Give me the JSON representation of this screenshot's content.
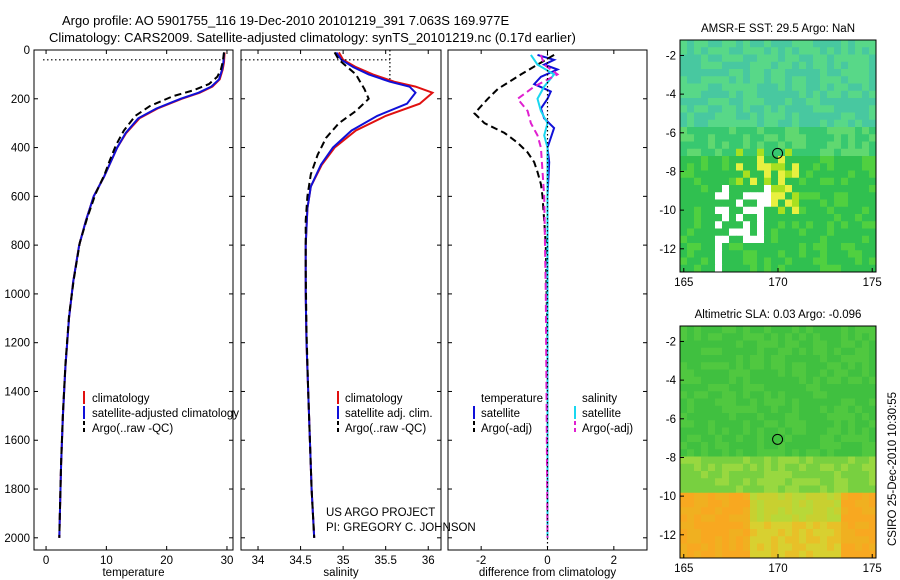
{
  "header": {
    "line1": "Argo profile: AO 5901755_116 19-Dec-2010 20101219_391 7.063S 169.977E",
    "line2": "Climatology: CARS2009. Satellite-adjusted climatology: synTS_20101219.nc (0.17d earlier)"
  },
  "credits": {
    "project": "US ARGO PROJECT",
    "pi": "PI: GREGORY C. JOHNSON",
    "stamp": "CSIRO 25-Dec-2010 10:30:55"
  },
  "colors": {
    "climatology": "#e01010",
    "satellite": "#1010d8",
    "argo": "#000000",
    "sal_satellite": "#19d7f0",
    "sal_argo": "#e020d0"
  },
  "chart_data": [
    {
      "type": "line",
      "id": "temperature",
      "xlabel": "temperature",
      "ylabel": "",
      "xlim": [
        -2,
        31
      ],
      "ylim": [
        2050,
        0
      ],
      "xticks": [
        "0",
        "10",
        "20",
        "30"
      ],
      "xtick_values": [
        0,
        10,
        20,
        30
      ],
      "yticks": [
        "0",
        "200",
        "400",
        "600",
        "800",
        "1000",
        "1200",
        "1400",
        "1600",
        "1800",
        "2000"
      ],
      "ytick_values": [
        0,
        200,
        400,
        600,
        800,
        1000,
        1200,
        1400,
        1600,
        1800,
        2000
      ],
      "legend": [
        "climatology",
        "satellite-adjusted climatology",
        "Argo(..raw -QC)"
      ],
      "series": [
        {
          "name": "climatology",
          "style": "solid",
          "color_key": "climatology",
          "x": [
            29.6,
            29.5,
            29.3,
            28.8,
            27.6,
            25.5,
            22.5,
            18.5,
            15.5,
            13.3,
            11.8,
            10.7,
            9.6,
            7.9,
            6.6,
            5.5,
            4.5,
            3.8,
            3.2,
            2.8,
            2.5,
            2.3,
            2.2
          ],
          "y": [
            10,
            50,
            80,
            120,
            150,
            175,
            200,
            240,
            280,
            340,
            400,
            460,
            520,
            600,
            700,
            800,
            950,
            1100,
            1300,
            1500,
            1700,
            1900,
            2000
          ]
        },
        {
          "name": "satellite-adjusted climatology",
          "style": "solid",
          "color_key": "satellite",
          "x": [
            29.5,
            29.4,
            29.2,
            28.7,
            27.4,
            25.3,
            22.3,
            18.3,
            15.3,
            13.2,
            11.8,
            10.7,
            9.6,
            7.9,
            6.6,
            5.5,
            4.5,
            3.8,
            3.2,
            2.8,
            2.5,
            2.3,
            2.2
          ],
          "y": [
            10,
            50,
            80,
            120,
            150,
            175,
            200,
            240,
            280,
            340,
            400,
            460,
            520,
            600,
            700,
            800,
            950,
            1100,
            1300,
            1500,
            1700,
            1900,
            2000
          ]
        },
        {
          "name": "Argo(..raw -QC)",
          "style": "dashed",
          "color_key": "argo",
          "x": [
            29.5,
            29.3,
            29.0,
            28.4,
            27.0,
            24.5,
            21.0,
            17.2,
            14.8,
            12.9,
            11.6,
            10.6,
            9.7,
            8.2,
            6.8,
            5.6,
            4.6,
            3.8,
            3.2,
            2.8,
            2.5,
            2.3,
            2.2
          ],
          "y": [
            10,
            50,
            80,
            110,
            140,
            165,
            190,
            230,
            270,
            330,
            390,
            450,
            510,
            590,
            690,
            790,
            940,
            1090,
            1290,
            1490,
            1690,
            1890,
            2000
          ]
        },
        {
          "name": "mixed layer",
          "style": "dotted",
          "color_key": "argo",
          "x": [
            -0.5,
            29.0
          ],
          "y": [
            40,
            40
          ]
        }
      ]
    },
    {
      "type": "line",
      "id": "salinity",
      "xlabel": "salinity",
      "xlim": [
        33.8,
        36.15
      ],
      "ylim": [
        2050,
        0
      ],
      "xticks": [
        "34",
        "34.5",
        "35",
        "35.5",
        "36"
      ],
      "xtick_values": [
        34,
        34.5,
        35,
        35.5,
        36
      ],
      "legend": [
        "climatology",
        "satellite adj. clim.",
        "Argo(..raw -QC)"
      ],
      "series": [
        {
          "name": "climatology",
          "style": "solid",
          "color_key": "climatology",
          "x": [
            34.95,
            35.0,
            35.15,
            35.35,
            35.6,
            35.85,
            36.05,
            35.9,
            35.5,
            35.15,
            34.9,
            34.75,
            34.62,
            34.58,
            34.56,
            34.56,
            34.57,
            34.59,
            34.61,
            34.63,
            34.66
          ],
          "y": [
            10,
            40,
            70,
            100,
            130,
            150,
            175,
            220,
            270,
            330,
            400,
            470,
            560,
            650,
            800,
            1000,
            1200,
            1400,
            1600,
            1800,
            2000
          ]
        },
        {
          "name": "satellite adj. clim.",
          "style": "solid",
          "color_key": "satellite",
          "x": [
            34.92,
            34.98,
            35.12,
            35.3,
            35.55,
            35.78,
            35.85,
            35.75,
            35.4,
            35.1,
            34.88,
            34.74,
            34.62,
            34.58,
            34.56,
            34.56,
            34.57,
            34.59,
            34.61,
            34.63,
            34.66
          ],
          "y": [
            10,
            40,
            70,
            100,
            130,
            150,
            175,
            220,
            270,
            330,
            400,
            470,
            560,
            650,
            800,
            1000,
            1200,
            1400,
            1600,
            1800,
            2000
          ]
        },
        {
          "name": "Argo(..raw -QC)",
          "style": "dashed",
          "color_key": "argo",
          "x": [
            34.9,
            34.95,
            35.05,
            35.15,
            35.2,
            35.25,
            35.3,
            35.15,
            34.95,
            34.8,
            34.7,
            34.62,
            34.58,
            34.56,
            34.56,
            34.57,
            34.59,
            34.61,
            34.63,
            34.66
          ],
          "y": [
            10,
            40,
            70,
            100,
            130,
            160,
            200,
            250,
            300,
            360,
            430,
            510,
            600,
            700,
            900,
            1150,
            1400,
            1600,
            1800,
            2000
          ]
        },
        {
          "name": "mixed layer",
          "style": "dotted",
          "color_key": "argo",
          "x": [
            33.8,
            35.55
          ],
          "y": [
            40,
            40
          ]
        },
        {
          "name": "mixed layer depth",
          "style": "dotted",
          "color_key": "argo",
          "x": [
            35.55,
            35.55
          ],
          "y": [
            0,
            120
          ]
        }
      ]
    },
    {
      "type": "line",
      "id": "difference",
      "xlabel": "difference from climatology",
      "xlim": [
        -3.0,
        3.0
      ],
      "ylim": [
        2050,
        0
      ],
      "xticks": [
        "-2",
        "0",
        "2"
      ],
      "xtick_values": [
        -2,
        0,
        2
      ],
      "legend_headers": [
        "temperature",
        "salinity"
      ],
      "legend": [
        "satellite",
        "Argo(-adj)",
        "satellite",
        "Argo(-adj)"
      ],
      "series": [
        {
          "name": "temperature satellite",
          "style": "solid",
          "color_key": "satellite",
          "x": [
            -0.3,
            0.2,
            -0.1,
            0.3,
            -0.2,
            -0.4,
            0.1,
            0.0,
            -0.2,
            -0.1,
            0.2,
            0.1,
            0.0,
            0.05,
            0.0,
            0.0,
            0.0,
            0.0,
            0.0
          ],
          "y": [
            20,
            40,
            60,
            80,
            110,
            140,
            170,
            200,
            240,
            280,
            320,
            360,
            400,
            460,
            600,
            800,
            1200,
            1600,
            2000
          ]
        },
        {
          "name": "temperature Argo(-adj)",
          "style": "dashed",
          "color_key": "argo",
          "x": [
            0.2,
            -0.3,
            -0.8,
            -1.5,
            -1.8,
            -2.2,
            -1.9,
            -1.3,
            -0.9,
            -0.6,
            -0.4,
            -0.3,
            -0.2,
            -0.15,
            -0.1,
            -0.05,
            0.0,
            0.0
          ],
          "y": [
            20,
            60,
            100,
            160,
            200,
            260,
            300,
            340,
            380,
            420,
            460,
            500,
            550,
            600,
            700,
            800,
            1200,
            2000
          ]
        },
        {
          "name": "salinity satellite",
          "style": "solid",
          "color_key": "sal_satellite",
          "x": [
            -0.5,
            -0.3,
            0.2,
            -0.1,
            -0.3,
            -0.2,
            0.0,
            -0.1,
            0.0,
            0.0,
            0.0,
            0.0
          ],
          "y": [
            20,
            60,
            100,
            150,
            200,
            250,
            300,
            350,
            400,
            600,
            1200,
            2000
          ]
        },
        {
          "name": "salinity Argo(-adj)",
          "style": "dashed",
          "color_key": "sal_argo",
          "x": [
            -0.2,
            -0.1,
            0.3,
            -0.4,
            -0.9,
            -0.6,
            -0.5,
            -0.3,
            -0.2,
            -0.1,
            -0.05,
            0.0
          ],
          "y": [
            20,
            60,
            100,
            150,
            200,
            250,
            300,
            350,
            400,
            600,
            1000,
            2000
          ]
        },
        {
          "name": "zero line",
          "style": "dotted",
          "color_key": "argo",
          "x": [
            0,
            0
          ],
          "y": [
            0,
            2050
          ]
        }
      ]
    },
    {
      "type": "heatmap",
      "id": "sst-map",
      "title": "AMSR-E SST: 29.5 Argo: NaN",
      "xticks": [
        "165",
        "170",
        "175"
      ],
      "xtick_values": [
        165,
        170,
        175
      ],
      "yticks": [
        "-2",
        "-4",
        "-6",
        "-8",
        "-10",
        "-12"
      ],
      "ytick_values": [
        -2,
        -4,
        -6,
        -8,
        -10,
        -12
      ],
      "xlim": [
        164.8,
        175.2
      ],
      "ylim": [
        -13.2,
        -1.2
      ],
      "float_position": [
        169.977,
        -7.063
      ]
    },
    {
      "type": "heatmap",
      "id": "sla-map",
      "title": "Altimetric SLA: 0.03 Argo: -0.096",
      "xticks": [
        "165",
        "170",
        "175"
      ],
      "xtick_values": [
        165,
        170,
        175
      ],
      "yticks": [
        "-2",
        "-4",
        "-6",
        "-8",
        "-10",
        "-12"
      ],
      "ytick_values": [
        -2,
        -4,
        -6,
        -8,
        -10,
        -12
      ],
      "xlim": [
        164.8,
        175.2
      ],
      "ylim": [
        -13.2,
        -1.2
      ],
      "float_position": [
        169.977,
        -7.063
      ]
    }
  ]
}
